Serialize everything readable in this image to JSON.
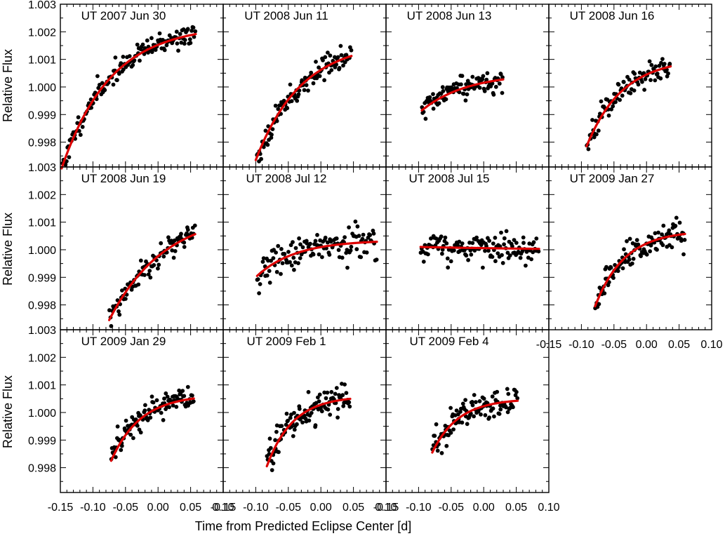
{
  "figure": {
    "xlabel": "Time from Predicted Eclipse Center [d]",
    "ylabel": "Relative Flux",
    "colors": {
      "points": "#000000",
      "fit": "#dd0000",
      "frame": "#000000"
    }
  },
  "chart_data": {
    "type": "scatter",
    "description_keys": "panels in reading order; x in days from predicted eclipse center, y is relative flux; fit is the red model curve",
    "xlim": [
      -0.15,
      0.1
    ],
    "ylim": [
      0.9971,
      1.003
    ],
    "xticks": [
      -0.15,
      -0.1,
      -0.05,
      0.0,
      0.05,
      0.1
    ],
    "xtick_labels": [
      "-0.15",
      "-0.10",
      "-0.05",
      "0.00",
      "0.05",
      "0.10"
    ],
    "yticks": [
      0.998,
      0.999,
      1.0,
      1.001,
      1.002,
      1.003
    ],
    "ytick_labels": [
      "0.998",
      "0.999",
      "1.000",
      "1.001",
      "1.002",
      "1.003"
    ],
    "panels": [
      {
        "title": "UT 2007 Jun 30",
        "x_range": [
          -0.148,
          0.058
        ],
        "fit": {
          "start": 0.99705,
          "end": 1.00225,
          "tau": 0.075
        },
        "scatter": 0.00018,
        "n": 150,
        "seed": 11
      },
      {
        "title": "UT 2008 Jun 11",
        "x_range": [
          -0.1,
          0.047
        ],
        "fit": {
          "start": 0.99735,
          "end": 1.00165,
          "tau": 0.07
        },
        "scatter": 0.0002,
        "n": 110,
        "seed": 23
      },
      {
        "title": "UT 2008 Jun 13",
        "x_range": [
          -0.095,
          0.03
        ],
        "fit": {
          "start": 0.99915,
          "end": 1.0005,
          "tau": 0.07
        },
        "scatter": 0.0002,
        "n": 100,
        "seed": 37
      },
      {
        "title": "UT 2008 Jun 16",
        "x_range": [
          -0.092,
          0.037
        ],
        "fit": {
          "start": 0.99785,
          "end": 1.00105,
          "tau": 0.055
        },
        "scatter": 0.00022,
        "n": 95,
        "seed": 41
      },
      {
        "title": "UT 2008 Jun 19",
        "x_range": [
          -0.075,
          0.057
        ],
        "fit": {
          "start": 0.99745,
          "end": 1.0014,
          "tau": 0.085
        },
        "scatter": 0.0002,
        "n": 95,
        "seed": 53
      },
      {
        "title": "UT 2008 Jul 12",
        "x_range": [
          -0.098,
          0.086
        ],
        "fit": {
          "start": 0.99905,
          "end": 1.00035,
          "tau": 0.06
        },
        "scatter": 0.0003,
        "n": 130,
        "seed": 67
      },
      {
        "title": "UT 2008 Jul 15",
        "x_range": [
          -0.097,
          0.085
        ],
        "fit": {
          "start": 1.0001,
          "end": 0.99995,
          "tau": 0.3
        },
        "scatter": 0.00028,
        "n": 130,
        "seed": 71
      },
      {
        "title": "UT 2009 Jan 27",
        "x_range": [
          -0.079,
          0.059
        ],
        "fit": {
          "start": 0.99795,
          "end": 1.0007,
          "tau": 0.045
        },
        "scatter": 0.00022,
        "n": 120,
        "seed": 83
      },
      {
        "title": "UT 2009 Jan 29",
        "x_range": [
          -0.072,
          0.055
        ],
        "fit": {
          "start": 0.99825,
          "end": 1.00065,
          "tau": 0.045
        },
        "scatter": 0.00025,
        "n": 115,
        "seed": 97
      },
      {
        "title": "UT 2009 Feb 1",
        "x_range": [
          -0.083,
          0.045
        ],
        "fit": {
          "start": 0.99805,
          "end": 1.0006,
          "tau": 0.04
        },
        "scatter": 0.00028,
        "n": 115,
        "seed": 101
      },
      {
        "title": "UT 2009 Feb 4",
        "x_range": [
          -0.079,
          0.052
        ],
        "fit": {
          "start": 0.99855,
          "end": 1.0005,
          "tau": 0.04
        },
        "scatter": 0.00026,
        "n": 110,
        "seed": 113
      }
    ]
  }
}
